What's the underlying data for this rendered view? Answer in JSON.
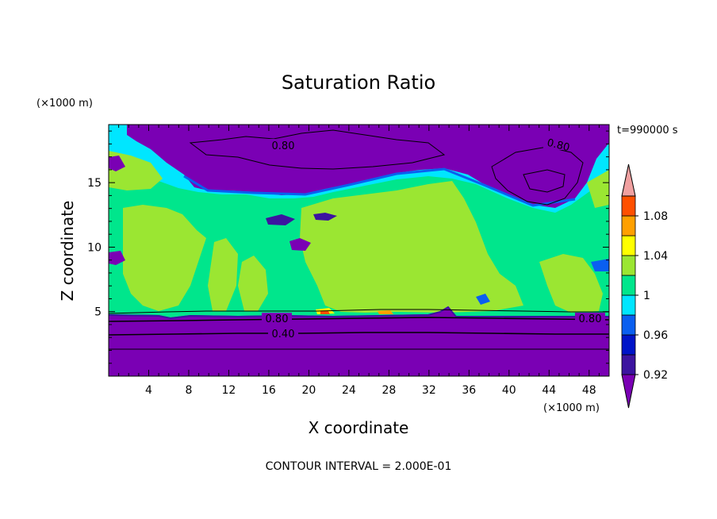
{
  "chart_data": {
    "type": "heatmap",
    "title": "Saturation Ratio",
    "xlabel": "X coordinate",
    "ylabel": "Z coordinate",
    "x_unit": "(×1000 m)",
    "y_unit": "(×1000 m)",
    "time_label": "t=990000 s",
    "footer": "CONTOUR INTERVAL = 2.000E-01",
    "xlim": [
      0,
      50
    ],
    "ylim": [
      0,
      19.5
    ],
    "x_ticks": [
      "4",
      "8",
      "12",
      "16",
      "20",
      "24",
      "28",
      "32",
      "36",
      "40",
      "44",
      "48"
    ],
    "y_ticks": [
      "5",
      "10",
      "15"
    ],
    "contour_labels": [
      "0.80",
      "0.80",
      "0.80",
      "0.40",
      "0.80"
    ],
    "colorbar": {
      "levels": [
        0.92,
        0.94,
        0.96,
        0.98,
        1.0,
        1.02,
        1.04,
        1.06,
        1.08,
        1.1
      ],
      "tick_labels": [
        "1.08",
        "1.04",
        "1",
        "0.96",
        "0.92"
      ],
      "colors": [
        "#7a00b4",
        "#3c14a0",
        "#0014c8",
        "#0a5ff0",
        "#00e6ff",
        "#00e68c",
        "#9be632",
        "#ffff00",
        "#ffa000",
        "#ff5000",
        "#f01e1e",
        "#f0a0a0"
      ]
    }
  }
}
